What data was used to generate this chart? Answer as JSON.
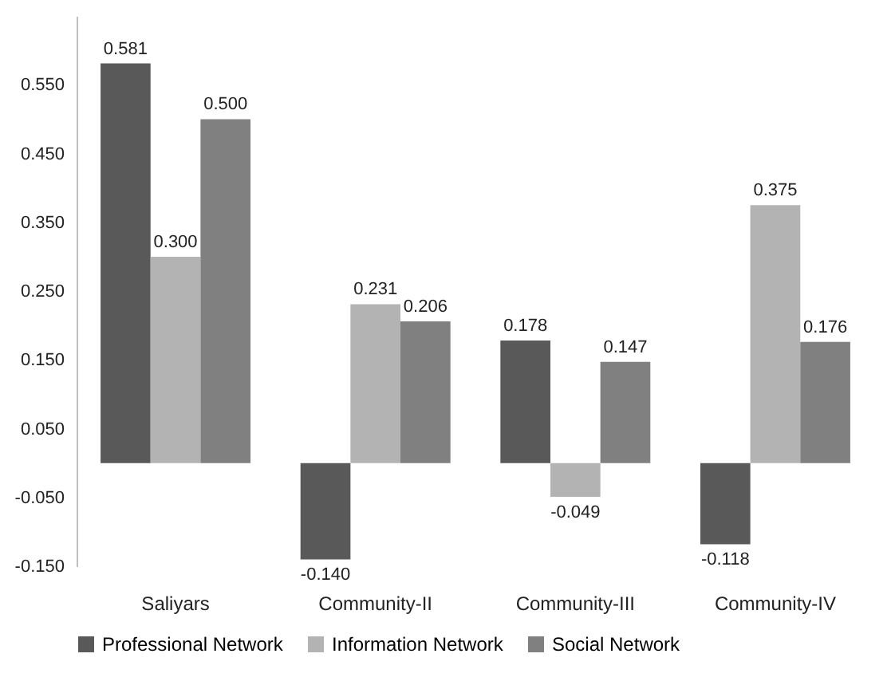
{
  "chart_data": {
    "type": "bar",
    "categories": [
      "Saliyars",
      "Community-II",
      "Community-III",
      "Community-IV"
    ],
    "series": [
      {
        "name": "Professional Network",
        "color": "#595959",
        "values": [
          0.581,
          -0.14,
          0.178,
          -0.118
        ],
        "value_labels": [
          "0.581",
          "-0.140",
          "0.178",
          "-0.118"
        ]
      },
      {
        "name": "Information Network",
        "color": "#b3b3b3",
        "values": [
          0.3,
          0.231,
          -0.049,
          0.375
        ],
        "value_labels": [
          "0.300",
          "0.231",
          "-0.049",
          "0.375"
        ]
      },
      {
        "name": "Social Network",
        "color": "#808080",
        "values": [
          0.5,
          0.206,
          0.147,
          0.176
        ],
        "value_labels": [
          "0.500",
          "0.206",
          "0.147",
          "0.176"
        ]
      }
    ],
    "ylim": [
      -0.15,
      0.65
    ],
    "yticks": [
      {
        "value": -0.15,
        "label": "-0.150"
      },
      {
        "value": -0.05,
        "label": "-0.050"
      },
      {
        "value": 0.05,
        "label": "0.050"
      },
      {
        "value": 0.15,
        "label": "0.150"
      },
      {
        "value": 0.25,
        "label": "0.250"
      },
      {
        "value": 0.35,
        "label": "0.350"
      },
      {
        "value": 0.45,
        "label": "0.450"
      },
      {
        "value": 0.55,
        "label": "0.550"
      }
    ],
    "grid": false,
    "legend": "bottom"
  }
}
